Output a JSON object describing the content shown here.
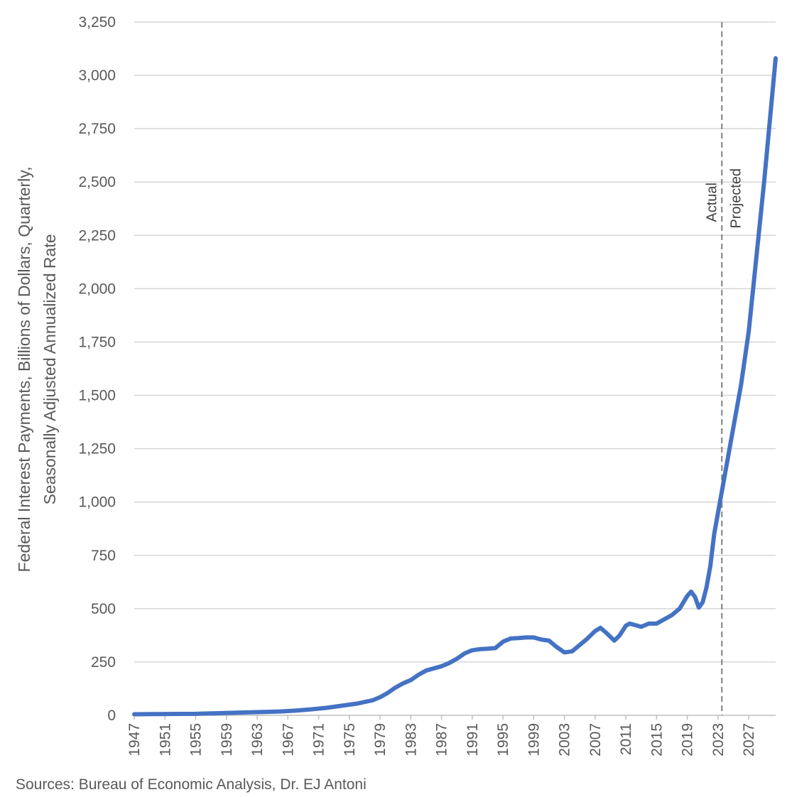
{
  "chart_data": {
    "type": "line",
    "title": "",
    "ylabel_lines": [
      "Federal Interest  Payments, Billions of Dollars, Quarterly,",
      "Seasonally Adjusted Annualized Rate"
    ],
    "xlabel": "",
    "xlim": [
      1947,
      2030.5
    ],
    "ylim": [
      0,
      3250
    ],
    "y_ticks": [
      0,
      250,
      500,
      750,
      1000,
      1250,
      1500,
      1750,
      2000,
      2250,
      2500,
      2750,
      3000,
      3250
    ],
    "y_tick_labels": [
      "0",
      "250",
      "500",
      "750",
      "1,000",
      "1,250",
      "1,500",
      "1,750",
      "2,000",
      "2,250",
      "2,500",
      "2,750",
      "3,000",
      "3,250"
    ],
    "x_ticks": [
      1947,
      1951,
      1955,
      1959,
      1963,
      1967,
      1971,
      1975,
      1979,
      1983,
      1987,
      1991,
      1995,
      1999,
      2003,
      2007,
      2011,
      2015,
      2019,
      2023,
      2027
    ],
    "x_tick_labels": [
      "1947",
      "1951",
      "1955",
      "1959",
      "1963",
      "1967",
      "1971",
      "1975",
      "1979",
      "1983",
      "1987",
      "1991",
      "1995",
      "1999",
      "2003",
      "2007",
      "2011",
      "2015",
      "2019",
      "2023",
      "2027"
    ],
    "grid": true,
    "line_color": "#4472C4",
    "divider": {
      "x": 2023.5,
      "label_left": "Actual",
      "label_right": "Projected",
      "color": "#808080"
    },
    "series": [
      {
        "x": [
          1947,
          1950,
          1955,
          1958,
          1960,
          1963,
          1966,
          1968,
          1970,
          1972,
          1974,
          1976,
          1978,
          1979,
          1980,
          1981,
          1982,
          1983,
          1984,
          1985,
          1986,
          1987,
          1988,
          1989,
          1990,
          1991,
          1992,
          1993,
          1994,
          1995,
          1996,
          1997,
          1998,
          1999,
          2000,
          2001,
          2002,
          2003,
          2004,
          2005,
          2006,
          2007,
          2007.7,
          2008.5,
          2009.5,
          2010.2,
          2011,
          2011.5,
          2012,
          2013,
          2014,
          2015,
          2016,
          2017,
          2018,
          2019,
          2019.5,
          2020,
          2020.5,
          2021,
          2021.5,
          2022,
          2022.5,
          2023,
          2023.5,
          2024,
          2025,
          2026,
          2027,
          2028,
          2029,
          2030.5
        ],
        "y": [
          5,
          6,
          7,
          10,
          12,
          15,
          18,
          22,
          28,
          35,
          45,
          55,
          70,
          85,
          105,
          130,
          150,
          165,
          190,
          210,
          220,
          230,
          245,
          265,
          290,
          305,
          310,
          312,
          315,
          345,
          360,
          362,
          365,
          365,
          355,
          350,
          320,
          295,
          300,
          330,
          360,
          395,
          410,
          385,
          350,
          375,
          420,
          430,
          425,
          415,
          430,
          430,
          450,
          470,
          500,
          560,
          580,
          555,
          505,
          530,
          600,
          700,
          850,
          950,
          1050,
          1150,
          1350,
          1550,
          1800,
          2150,
          2500,
          3080
        ]
      }
    ],
    "source": "Sources: Bureau of Economic Analysis, Dr. EJ Antoni"
  }
}
